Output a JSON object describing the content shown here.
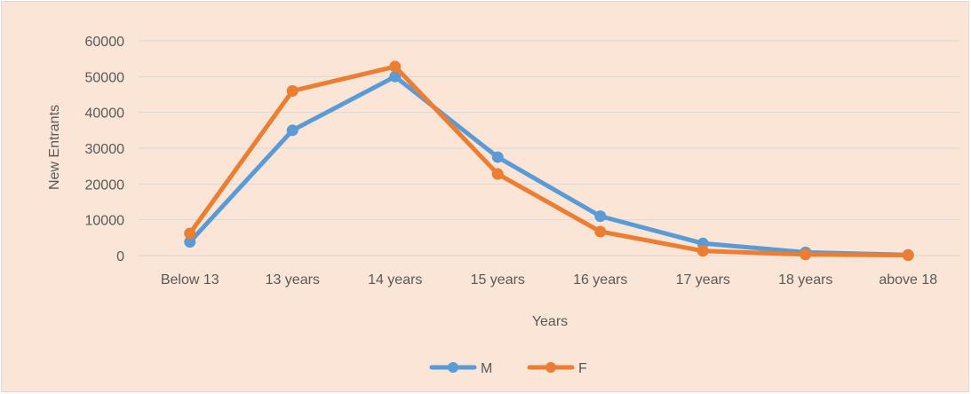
{
  "chart_data": {
    "type": "line",
    "categories": [
      "Below 13",
      "13 years",
      "14 years",
      "15 years",
      "16 years",
      "17 years",
      "18 years",
      "above 18"
    ],
    "series": [
      {
        "name": "M",
        "color": "#5b9bd5",
        "values": [
          3800,
          35000,
          50000,
          27500,
          11000,
          3400,
          900,
          200
        ]
      },
      {
        "name": "F",
        "color": "#ed7d31",
        "values": [
          6200,
          46000,
          52800,
          22800,
          6700,
          1300,
          300,
          100
        ]
      }
    ],
    "title": "",
    "xlabel": "Years",
    "ylabel": "New Entrants",
    "ylim": [
      0,
      60000
    ],
    "yticks": [
      "0",
      "10000",
      "20000",
      "30000",
      "40000",
      "50000",
      "60000"
    ],
    "grid": "horizontal",
    "legend_position": "bottom",
    "background_color": "#fbe5d6",
    "gridline_color": "#d9d9d9"
  }
}
